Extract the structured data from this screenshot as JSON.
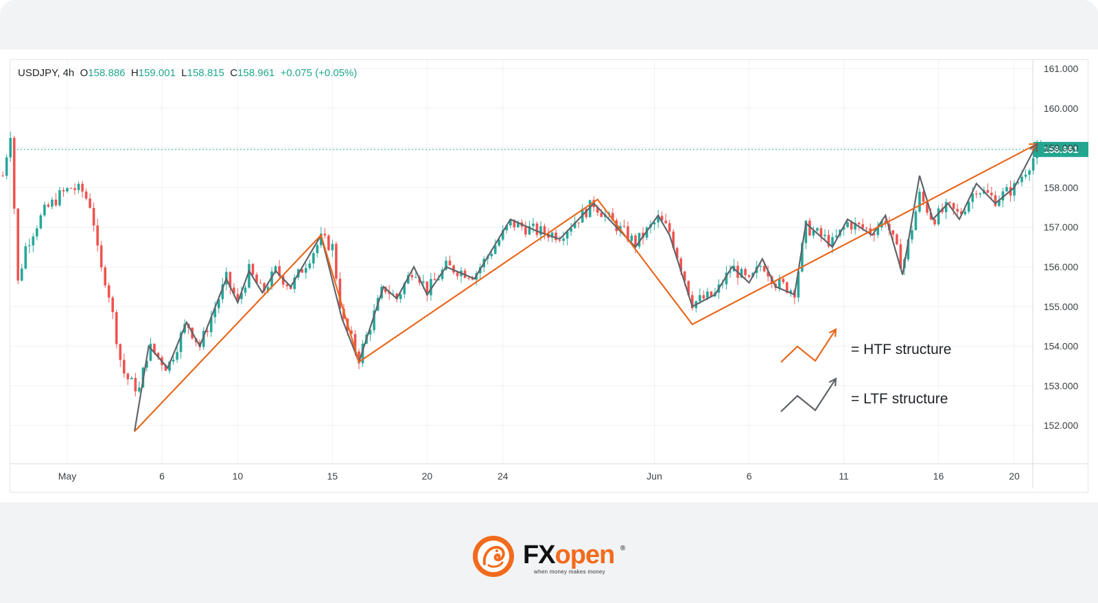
{
  "ticker": {
    "symbol": "USDJPY, 4h",
    "o_label": "O",
    "o_value": "158.886",
    "h_label": "H",
    "h_value": "159.001",
    "l_label": "L",
    "l_value": "158.815",
    "c_label": "C",
    "c_value": "158.961",
    "change": "+0.075 (+0.05%)"
  },
  "chart_data": {
    "type": "candlestick",
    "title": "USDJPY, 4h",
    "ylim": [
      151.0,
      161.3
    ],
    "y_ticks": [
      "161.000",
      "160.000",
      "159.000",
      "158.000",
      "157.000",
      "156.000",
      "155.000",
      "154.000",
      "153.000",
      "152.000"
    ],
    "x_ticks": [
      {
        "label": "May",
        "day": 1
      },
      {
        "label": "6",
        "day": 6
      },
      {
        "label": "10",
        "day": 10
      },
      {
        "label": "15",
        "day": 15
      },
      {
        "label": "20",
        "day": 20
      },
      {
        "label": "24",
        "day": 24
      },
      {
        "label": "Jun",
        "day": 32
      },
      {
        "label": "6",
        "day": 37
      },
      {
        "label": "11",
        "day": 42
      },
      {
        "label": "16",
        "day": 47
      },
      {
        "label": "20",
        "day": 51
      }
    ],
    "last_price": "158.961",
    "last_price_value": 158.961,
    "htf_structure": [
      {
        "day": 4.55,
        "price": 151.85
      },
      {
        "day": 14.4,
        "price": 156.8
      },
      {
        "day": 16.4,
        "price": 153.6
      },
      {
        "day": 29.0,
        "price": 157.7
      },
      {
        "day": 34.0,
        "price": 154.55
      },
      {
        "day": 52.2,
        "price": 159.1
      }
    ],
    "ltf_structure": [
      {
        "day": 4.55,
        "price": 151.85
      },
      {
        "day": 5.3,
        "price": 154.0
      },
      {
        "day": 6.3,
        "price": 153.45
      },
      {
        "day": 7.3,
        "price": 154.6
      },
      {
        "day": 8.0,
        "price": 154.0
      },
      {
        "day": 9.4,
        "price": 155.7
      },
      {
        "day": 10.0,
        "price": 155.1
      },
      {
        "day": 10.6,
        "price": 155.9
      },
      {
        "day": 11.3,
        "price": 155.35
      },
      {
        "day": 12.0,
        "price": 155.9
      },
      {
        "day": 12.8,
        "price": 155.5
      },
      {
        "day": 14.4,
        "price": 156.8
      },
      {
        "day": 15.5,
        "price": 154.7
      },
      {
        "day": 16.4,
        "price": 153.6
      },
      {
        "day": 17.7,
        "price": 155.5
      },
      {
        "day": 18.4,
        "price": 155.2
      },
      {
        "day": 19.3,
        "price": 156.0
      },
      {
        "day": 20.0,
        "price": 155.3
      },
      {
        "day": 21.0,
        "price": 156.0
      },
      {
        "day": 22.5,
        "price": 155.7
      },
      {
        "day": 24.4,
        "price": 157.2
      },
      {
        "day": 25.8,
        "price": 156.9
      },
      {
        "day": 27.0,
        "price": 156.7
      },
      {
        "day": 28.8,
        "price": 157.6
      },
      {
        "day": 29.6,
        "price": 157.2
      },
      {
        "day": 31.0,
        "price": 156.5
      },
      {
        "day": 32.2,
        "price": 157.3
      },
      {
        "day": 32.8,
        "price": 156.8
      },
      {
        "day": 34.0,
        "price": 155.0
      },
      {
        "day": 35.2,
        "price": 155.3
      },
      {
        "day": 36.1,
        "price": 156.0
      },
      {
        "day": 37.0,
        "price": 155.6
      },
      {
        "day": 37.7,
        "price": 156.2
      },
      {
        "day": 38.4,
        "price": 155.5
      },
      {
        "day": 39.4,
        "price": 155.3
      },
      {
        "day": 40.0,
        "price": 157.1
      },
      {
        "day": 41.4,
        "price": 156.5
      },
      {
        "day": 42.2,
        "price": 157.2
      },
      {
        "day": 43.5,
        "price": 156.8
      },
      {
        "day": 44.2,
        "price": 157.3
      },
      {
        "day": 45.1,
        "price": 155.8
      },
      {
        "day": 46.0,
        "price": 158.3
      },
      {
        "day": 46.7,
        "price": 157.2
      },
      {
        "day": 47.5,
        "price": 157.6
      },
      {
        "day": 48.1,
        "price": 157.2
      },
      {
        "day": 49.0,
        "price": 158.1
      },
      {
        "day": 50.0,
        "price": 157.6
      },
      {
        "day": 51.0,
        "price": 158.0
      },
      {
        "day": 52.2,
        "price": 159.1
      }
    ],
    "candle_path": [
      {
        "day": -2.4,
        "price": 158.3
      },
      {
        "day": -2.0,
        "price": 159.4
      },
      {
        "day": -1.6,
        "price": 155.6
      },
      {
        "day": -1.2,
        "price": 156.5
      },
      {
        "day": -0.7,
        "price": 157.0
      },
      {
        "day": -0.2,
        "price": 157.4
      },
      {
        "day": 0.6,
        "price": 157.8
      },
      {
        "day": 1.2,
        "price": 158.0
      },
      {
        "day": 1.8,
        "price": 157.9
      },
      {
        "day": 2.3,
        "price": 157.5
      },
      {
        "day": 2.7,
        "price": 156.0
      },
      {
        "day": 3.1,
        "price": 155.6
      },
      {
        "day": 3.5,
        "price": 154.5
      },
      {
        "day": 3.9,
        "price": 153.4
      },
      {
        "day": 4.3,
        "price": 153.1
      },
      {
        "day": 4.8,
        "price": 152.9
      },
      {
        "day": 5.3,
        "price": 154.0
      },
      {
        "day": 6.3,
        "price": 153.45
      },
      {
        "day": 7.3,
        "price": 154.6
      },
      {
        "day": 8.0,
        "price": 154.0
      },
      {
        "day": 9.4,
        "price": 155.7
      },
      {
        "day": 10.0,
        "price": 155.1
      },
      {
        "day": 10.6,
        "price": 155.9
      },
      {
        "day": 11.3,
        "price": 155.35
      },
      {
        "day": 12.0,
        "price": 155.9
      },
      {
        "day": 12.8,
        "price": 155.5
      },
      {
        "day": 14.4,
        "price": 156.7
      },
      {
        "day": 15.0,
        "price": 156.5
      },
      {
        "day": 15.5,
        "price": 154.7
      },
      {
        "day": 16.4,
        "price": 153.7
      },
      {
        "day": 17.7,
        "price": 155.5
      },
      {
        "day": 18.4,
        "price": 155.2
      },
      {
        "day": 19.3,
        "price": 156.0
      },
      {
        "day": 20.0,
        "price": 155.4
      },
      {
        "day": 21.0,
        "price": 156.0
      },
      {
        "day": 22.5,
        "price": 155.8
      },
      {
        "day": 24.4,
        "price": 157.1
      },
      {
        "day": 25.8,
        "price": 156.9
      },
      {
        "day": 27.0,
        "price": 156.8
      },
      {
        "day": 28.8,
        "price": 157.6
      },
      {
        "day": 29.6,
        "price": 157.2
      },
      {
        "day": 31.0,
        "price": 156.6
      },
      {
        "day": 32.2,
        "price": 157.2
      },
      {
        "day": 32.8,
        "price": 156.9
      },
      {
        "day": 34.0,
        "price": 155.1
      },
      {
        "day": 35.2,
        "price": 155.3
      },
      {
        "day": 36.1,
        "price": 156.0
      },
      {
        "day": 37.0,
        "price": 155.6
      },
      {
        "day": 37.7,
        "price": 156.1
      },
      {
        "day": 38.4,
        "price": 155.6
      },
      {
        "day": 39.4,
        "price": 155.4
      },
      {
        "day": 40.0,
        "price": 157.0
      },
      {
        "day": 41.4,
        "price": 156.6
      },
      {
        "day": 42.2,
        "price": 157.1
      },
      {
        "day": 43.5,
        "price": 156.9
      },
      {
        "day": 44.2,
        "price": 157.2
      },
      {
        "day": 45.1,
        "price": 156.0
      },
      {
        "day": 46.0,
        "price": 157.8
      },
      {
        "day": 46.7,
        "price": 157.2
      },
      {
        "day": 47.5,
        "price": 157.5
      },
      {
        "day": 48.1,
        "price": 157.3
      },
      {
        "day": 49.0,
        "price": 158.0
      },
      {
        "day": 50.0,
        "price": 157.7
      },
      {
        "day": 51.0,
        "price": 158.0
      },
      {
        "day": 52.2,
        "price": 158.9
      },
      {
        "day": 52.6,
        "price": 159.0
      }
    ],
    "legend": [
      {
        "label": "= HTF structure",
        "color": "#e8671c"
      },
      {
        "label": "= LTF structure",
        "color": "#5f6368"
      }
    ],
    "grid": true
  },
  "colors": {
    "htf": "#e8671c",
    "ltf": "#5f6368",
    "up": "#26a69a",
    "down": "#ef5350",
    "price_tag": "#22a68f"
  },
  "brand": {
    "name_fx": "FX",
    "name_open": "open",
    "reg": "®",
    "tagline": "when money makes money"
  }
}
